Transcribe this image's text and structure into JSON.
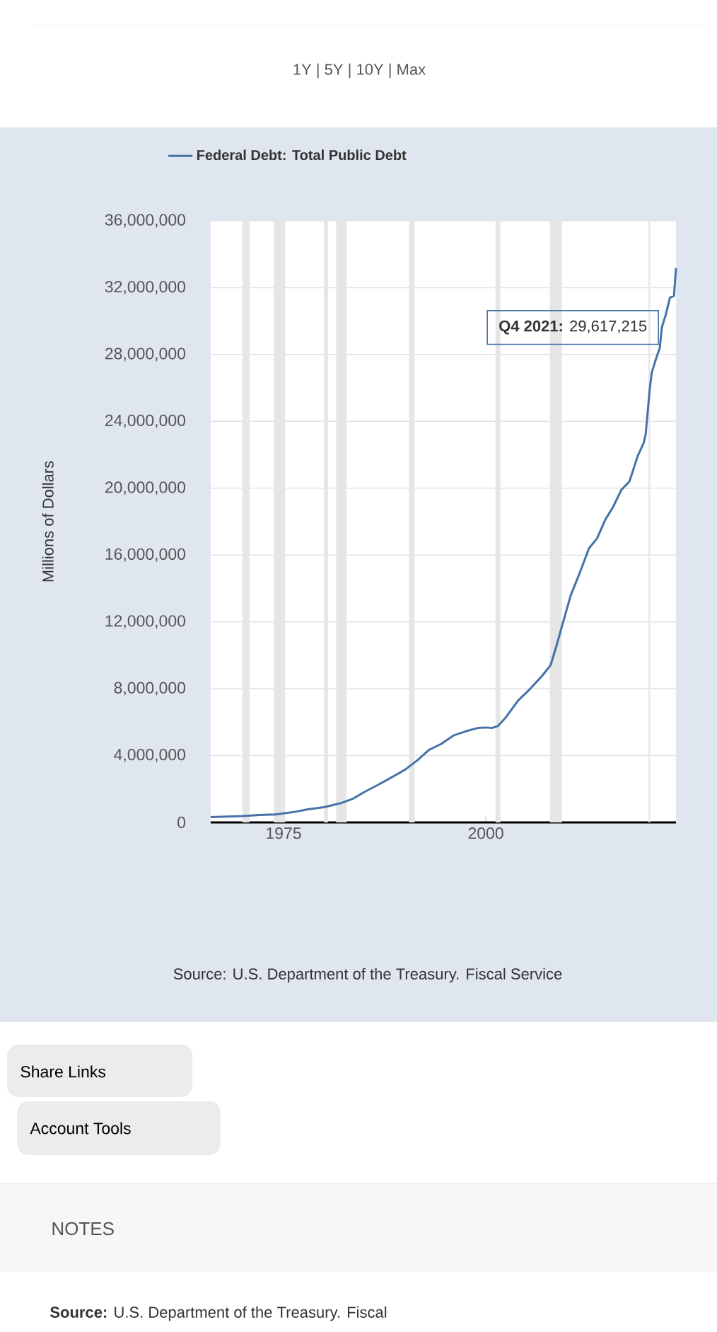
{
  "chart_data": {
    "type": "line",
    "ylabel": "Millions of Dollars",
    "x": [
      1966.0,
      1968.0,
      1970.0,
      1972.0,
      1974.0,
      1975.0,
      1976.5,
      1978.0,
      1980.0,
      1982.0,
      1983.5,
      1985.0,
      1986.5,
      1988.0,
      1990.0,
      1991.5,
      1993.0,
      1994.5,
      1996.0,
      1997.5,
      1999.0,
      2000.0,
      2000.75,
      2001.5,
      2002.5,
      2004.0,
      2005.5,
      2007.0,
      2008.0,
      2008.75,
      2009.5,
      2010.5,
      2011.5,
      2012.75,
      2013.75,
      2014.75,
      2015.75,
      2016.75,
      2017.75,
      2018.75,
      2019.5,
      2019.75,
      2020.25,
      2020.5,
      2021.0,
      2021.5,
      2021.75,
      2022.25,
      2022.75,
      2023.25,
      2023.5
    ],
    "series": [
      {
        "name": "Federal Debt: Total Public Debt",
        "color": "#4572a7",
        "values": [
          320000,
          350000,
          380000,
          440000,
          480000,
          540000,
          640000,
          780000,
          910000,
          1140000,
          1400000,
          1820000,
          2200000,
          2600000,
          3150000,
          3700000,
          4350000,
          4700000,
          5200000,
          5450000,
          5650000,
          5680000,
          5650000,
          5770000,
          6300000,
          7300000,
          8000000,
          8800000,
          9400000,
          10600000,
          11900000,
          13600000,
          14800000,
          16400000,
          17000000,
          18100000,
          18900000,
          19900000,
          20400000,
          21900000,
          22700000,
          23200000,
          25900000,
          26900000,
          27700000,
          28400000,
          29617215,
          30400000,
          31400000,
          31500000,
          33167000
        ]
      }
    ],
    "xlim": [
      1966.0,
      2023.5
    ],
    "ylim": [
      0,
      36000000
    ],
    "xticks": [
      1975,
      2000
    ],
    "yticks": [
      {
        "value": 0,
        "label": "0"
      },
      {
        "value": 4000000,
        "label": "4,000,000"
      },
      {
        "value": 8000000,
        "label": "8,000,000"
      },
      {
        "value": 12000000,
        "label": "12,000,000"
      },
      {
        "value": 16000000,
        "label": "16,000,000"
      },
      {
        "value": 20000000,
        "label": "20,000,000"
      },
      {
        "value": 24000000,
        "label": "24,000,000"
      },
      {
        "value": 28000000,
        "label": "28,000,000"
      },
      {
        "value": 32000000,
        "label": "32,000,000"
      },
      {
        "value": 36000000,
        "label": "36,000,000"
      }
    ],
    "bands": [
      {
        "axis": "x",
        "from": 1969.9,
        "to": 1970.8,
        "color": "#e6e6e6"
      },
      {
        "axis": "x",
        "from": 1973.8,
        "to": 1975.2,
        "color": "#e6e6e6"
      },
      {
        "axis": "x",
        "from": 1980.0,
        "to": 1980.5,
        "color": "#e6e6e6"
      },
      {
        "axis": "x",
        "from": 1981.5,
        "to": 1982.8,
        "color": "#e6e6e6"
      },
      {
        "axis": "x",
        "from": 1990.5,
        "to": 1991.2,
        "color": "#e6e6e6"
      },
      {
        "axis": "x",
        "from": 2001.2,
        "to": 2001.8,
        "color": "#e6e6e6"
      },
      {
        "axis": "x",
        "from": 2007.9,
        "to": 2009.4,
        "color": "#e6e6e6"
      },
      {
        "axis": "x",
        "from": 2020.1,
        "to": 2020.3,
        "color": "#e6e6e6"
      }
    ],
    "annotations": [
      {
        "text": "**Q4 2021:** 29,617,215",
        "x": 2021.75,
        "y": 29617215
      },
      "1Y | 5Y | 10Y | Max",
      "Source: U.S. Department of the Treasury. Fiscal Service",
      "Share Links",
      "Account Tools",
      "NOTES",
      "**Source:** U.S. Department of the Treasury. Fiscal"
    ],
    "grid": "y",
    "legend": "top left"
  }
}
